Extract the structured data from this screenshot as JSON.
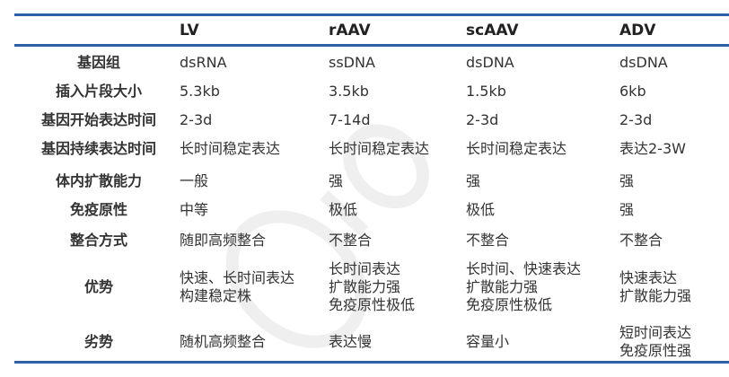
{
  "watermark": {
    "text": "OBiO 和元生物",
    "color": "#e6e6e6"
  },
  "colors": {
    "rule": "#2f5fa7"
  },
  "table": {
    "columns": [
      "LV",
      "rAAV",
      "scAAV",
      "ADV"
    ],
    "rows": [
      {
        "label": "基因组",
        "cells": [
          "dsRNA",
          "ssDNA",
          "dsDNA",
          "dsDNA"
        ]
      },
      {
        "label": "插入片段大小",
        "cells": [
          "5.3kb",
          "3.5kb",
          "1.5kb",
          "6kb"
        ]
      },
      {
        "label": "基因开始表达时间",
        "cells": [
          "2-3d",
          "7-14d",
          "2-3d",
          "2-3d"
        ]
      },
      {
        "label": "基因持续表达时间",
        "cells": [
          "长时间稳定表达",
          "长时间稳定表达",
          "长时间稳定表达",
          "表达2-3W"
        ]
      },
      {
        "label": "体内扩散能力",
        "cells": [
          "一般",
          "强",
          "强",
          "强"
        ]
      },
      {
        "label": "免疫原性",
        "cells": [
          "中等",
          "极低",
          "极低",
          "强"
        ]
      },
      {
        "label": "整合方式",
        "cells": [
          "随即高频整合",
          "不整合",
          "不整合",
          "不整合"
        ]
      },
      {
        "label": "优势",
        "cells": [
          "快速、长时间表达\n构建稳定株",
          "长时间表达\n扩散能力强\n免疫原性极低",
          "长时间、快速表达\n扩散能力强\n免疫原性极低",
          "快速表达\n扩散能力强"
        ]
      },
      {
        "label": "劣势",
        "cells": [
          "随机高频整合",
          "表达慢",
          "容量小",
          "短时间表达\n免疫原性强"
        ]
      }
    ]
  }
}
